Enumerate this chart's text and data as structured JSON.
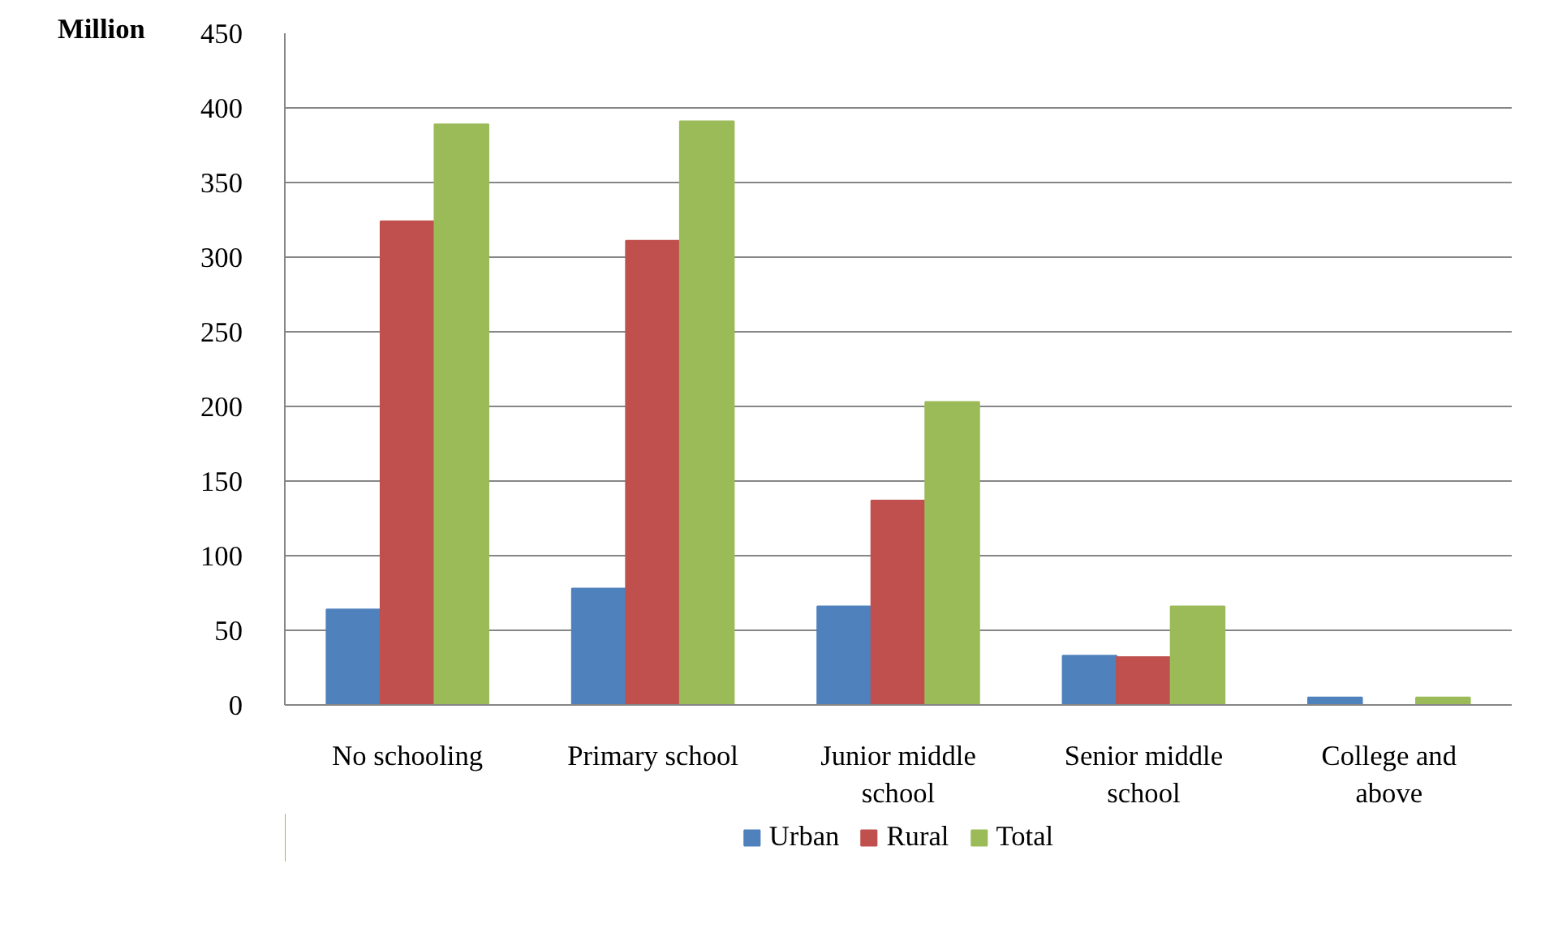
{
  "chart_data": {
    "type": "bar",
    "ylabel": "Million",
    "categories": [
      "No schooling",
      "Primary school",
      "Junior middle school",
      "Senior middle school",
      "College and above"
    ],
    "series": [
      {
        "name": "Urban",
        "color": "#4f81bd",
        "values": [
          64,
          78,
          66,
          33,
          5
        ]
      },
      {
        "name": "Rural",
        "color": "#c0504d",
        "values": [
          324,
          311,
          137,
          32,
          0
        ]
      },
      {
        "name": "Total",
        "color": "#9bbb59",
        "values": [
          389,
          391,
          203,
          66,
          5
        ]
      }
    ],
    "ylim": [
      0,
      450
    ],
    "yticks": [
      0,
      50,
      100,
      150,
      200,
      250,
      300,
      350,
      400,
      450
    ],
    "grid": "y",
    "legend": "bottom"
  }
}
